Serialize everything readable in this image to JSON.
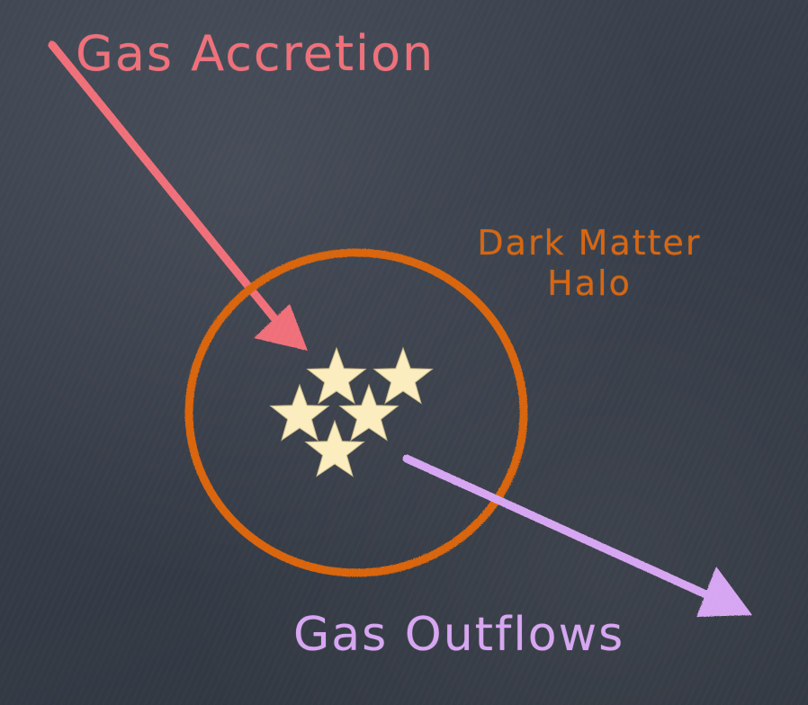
{
  "labels": {
    "gas_accretion": "Gas Accretion",
    "dark_matter_halo_line1": "Dark Matter",
    "dark_matter_halo_line2": "Halo",
    "gas_outflows": "Gas Outflows"
  },
  "colors": {
    "accretion": "#f0707a",
    "halo": "#d9650e",
    "outflows": "#d7a6f2",
    "stars": "#fbedbe"
  },
  "icons": {
    "star": "star-icon",
    "accretion_arrow": "arrow-icon",
    "outflow_arrow": "arrow-icon"
  },
  "star_count": 5
}
